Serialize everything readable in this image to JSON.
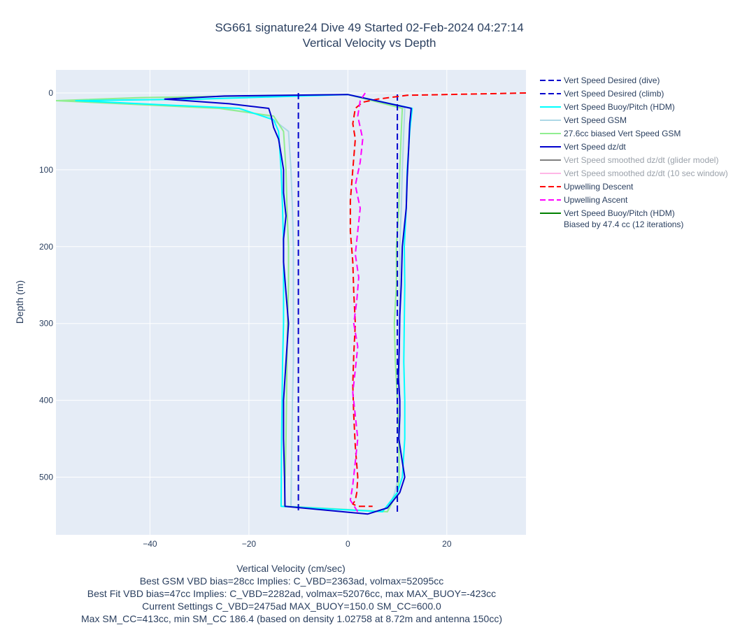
{
  "chart_data": {
    "type": "line",
    "title": "SG661 signature24 Dive 49 Started 02-Feb-2024 04:27:14",
    "subtitle": "Vertical Velocity vs Depth",
    "xlabel": "Vertical Velocity (cm/sec)",
    "ylabel": "Depth (m)",
    "xlim": [
      -59,
      36
    ],
    "ylim": [
      575,
      -30
    ],
    "x_ticks": [
      -40,
      -20,
      0,
      20
    ],
    "x_tick_labels": [
      "−40",
      "−20",
      "0",
      "20"
    ],
    "y_ticks": [
      0,
      100,
      200,
      300,
      400,
      500
    ],
    "y_tick_labels": [
      "0",
      "100",
      "200",
      "300",
      "400",
      "500"
    ],
    "grid": true,
    "legend_position": "right",
    "series": [
      {
        "name": "Vert Speed Desired (dive)",
        "color": "#0000cd",
        "dash": "dash",
        "visible": true,
        "x": [
          -10,
          -10
        ],
        "y": [
          0,
          545
        ]
      },
      {
        "name": "Vert Speed Desired (climb)",
        "color": "#0000cd",
        "dash": "dash",
        "visible": true,
        "x": [
          10,
          10
        ],
        "y": [
          545,
          0
        ]
      },
      {
        "name": "Vert Speed Buoy/Pitch (HDM)",
        "color": "#00ffff",
        "dash": "solid",
        "visible": true,
        "x": [
          0,
          -30,
          -55,
          -42,
          -22,
          -15,
          -14,
          -13.5,
          -13.2,
          -13,
          -13,
          -13,
          -13.2,
          -13.3,
          -13.4,
          -13.5,
          7,
          10,
          11,
          11.5,
          11.5,
          11.3,
          11.4,
          11.5,
          11.4,
          11.8,
          12,
          12.5,
          13,
          0
        ],
        "y": [
          2,
          8,
          10,
          14,
          20,
          35,
          50,
          100,
          150,
          200,
          250,
          300,
          350,
          400,
          450,
          538,
          545,
          520,
          500,
          450,
          400,
          350,
          300,
          250,
          200,
          150,
          100,
          50,
          20,
          2
        ]
      },
      {
        "name": "Vert Speed GSM",
        "color": "#add8e6",
        "dash": "solid",
        "visible": true,
        "x": [
          0,
          -40,
          -57,
          -45,
          -25,
          -16,
          -12,
          -11.5,
          -11.2,
          -11,
          -11,
          -11,
          -11,
          -11.2,
          -11.3,
          -11.5,
          8,
          9.5,
          10.2,
          10.5,
          10.5,
          10.4,
          10.4,
          10.5,
          10.5,
          10.8,
          11,
          11.3,
          11.5,
          0
        ],
        "y": [
          2,
          6,
          10,
          14,
          20,
          30,
          50,
          100,
          150,
          200,
          250,
          300,
          350,
          400,
          450,
          538,
          545,
          520,
          500,
          450,
          400,
          350,
          300,
          250,
          200,
          150,
          100,
          50,
          20,
          2
        ]
      },
      {
        "name": "27.6cc biased Vert Speed GSM",
        "color": "#90ee90",
        "dash": "solid",
        "visible": true,
        "x": [
          0,
          -42,
          -59,
          -46,
          -26,
          -15,
          -13,
          -12.5,
          -12.3,
          -12,
          -12,
          -12.2,
          -12.3,
          -12.4,
          -12.5,
          -12.8,
          8,
          10,
          10.4,
          10.3,
          10,
          9.6,
          9.4,
          9.8,
          9.8,
          10.3,
          10.5,
          10.8,
          11,
          0
        ],
        "y": [
          2,
          6,
          10,
          14,
          20,
          30,
          50,
          100,
          150,
          200,
          250,
          300,
          350,
          400,
          450,
          538,
          545,
          520,
          500,
          450,
          400,
          350,
          300,
          250,
          200,
          150,
          100,
          50,
          20,
          2
        ]
      },
      {
        "name": "Vert Speed dz/dt",
        "color": "#0000cd",
        "dash": "solid",
        "visible": true,
        "x": [
          0,
          -25,
          -37,
          -24,
          -16,
          -15.5,
          -15,
          -14,
          -13.5,
          -13,
          -13,
          -12.5,
          -13,
          -13,
          -12.5,
          -12,
          -12.5,
          -13,
          -13,
          -12.8,
          -12.7,
          4,
          8,
          10.5,
          11.5,
          11,
          10.3,
          10.5,
          10.5,
          10.2,
          10.4,
          10.5,
          10.8,
          11,
          11.8,
          12,
          12.3,
          12.5,
          12.8,
          0
        ],
        "y": [
          2,
          4,
          8,
          14,
          20,
          30,
          45,
          60,
          80,
          100,
          130,
          160,
          190,
          220,
          260,
          300,
          350,
          400,
          450,
          500,
          538,
          548,
          540,
          520,
          500,
          480,
          450,
          420,
          400,
          370,
          330,
          290,
          250,
          200,
          150,
          110,
          70,
          40,
          20,
          2
        ]
      },
      {
        "name": "Vert Speed smoothed dz/dt (glider model)",
        "color": "#808080",
        "dash": "solid",
        "visible": false,
        "x": [],
        "y": []
      },
      {
        "name": "Vert Speed smoothed dz/dt (10 sec window)",
        "color": "#ffb6e6",
        "dash": "solid",
        "visible": false,
        "x": [],
        "y": []
      },
      {
        "name": "Upwelling Descent",
        "color": "#ff0000",
        "dash": "dash",
        "visible": true,
        "x": [
          36,
          12,
          6,
          3,
          1.5,
          1,
          1.5,
          1,
          0.5,
          0.5,
          1,
          1.2,
          1.5,
          1.2,
          1,
          1.2,
          1.5,
          2,
          1.8,
          1.5,
          1,
          2,
          5
        ],
        "y": [
          0,
          3,
          8,
          12,
          20,
          40,
          60,
          100,
          140,
          180,
          220,
          260,
          300,
          340,
          380,
          420,
          460,
          500,
          520,
          530,
          535,
          538,
          538
        ]
      },
      {
        "name": "Upwelling Ascent",
        "color": "#ff00ff",
        "dash": "dash",
        "visible": true,
        "x": [
          2,
          0.5,
          1,
          1.5,
          2,
          1.5,
          1,
          1.5,
          2,
          1.2,
          1.8,
          2.2,
          1.5,
          2,
          2.5,
          1.5,
          2.5,
          3,
          2,
          2.5,
          3.5
        ],
        "y": [
          545,
          530,
          510,
          480,
          450,
          420,
          390,
          360,
          330,
          300,
          270,
          240,
          210,
          180,
          150,
          120,
          90,
          60,
          30,
          10,
          0
        ]
      },
      {
        "name": "Vert Speed Buoy/Pitch (HDM) Biased by 47.4 cc (12 iterations)",
        "color": "#008000",
        "dash": "solid",
        "visible": true,
        "x": [
          0,
          -35,
          -42,
          -28,
          -16,
          -14,
          -13.5,
          -13,
          -13,
          -12.8,
          -12.8,
          -13,
          -13,
          -13,
          -13.2,
          -13.3,
          6,
          9,
          10.5,
          11,
          11.3,
          11.2,
          11,
          11.2,
          11.3,
          11.8,
          12,
          12.3,
          12.5,
          0
        ],
        "y": [
          2,
          6,
          10,
          14,
          20,
          35,
          50,
          100,
          150,
          200,
          250,
          300,
          350,
          400,
          450,
          538,
          545,
          520,
          500,
          450,
          400,
          350,
          300,
          250,
          200,
          150,
          100,
          50,
          20,
          2
        ]
      }
    ]
  },
  "legend": {
    "items": [
      {
        "label": "Vert Speed Desired (dive)",
        "color": "#0000cd",
        "dash": "dash",
        "muted": false
      },
      {
        "label": "Vert Speed Desired (climb)",
        "color": "#0000cd",
        "dash": "dash",
        "muted": false
      },
      {
        "label": "Vert Speed Buoy/Pitch (HDM)",
        "color": "#00ffff",
        "dash": "solid",
        "muted": false
      },
      {
        "label": "Vert Speed GSM",
        "color": "#add8e6",
        "dash": "solid",
        "muted": false
      },
      {
        "label": "27.6cc biased Vert Speed GSM",
        "color": "#90ee90",
        "dash": "solid",
        "muted": false
      },
      {
        "label": "Vert Speed dz/dt",
        "color": "#0000cd",
        "dash": "solid",
        "muted": false
      },
      {
        "label": "Vert Speed smoothed dz/dt (glider model)",
        "color": "#808080",
        "dash": "solid",
        "muted": true
      },
      {
        "label": "Vert Speed smoothed dz/dt (10 sec window)",
        "color": "#ffb6e6",
        "dash": "solid",
        "muted": true
      },
      {
        "label": "Upwelling Descent",
        "color": "#ff0000",
        "dash": "dash",
        "muted": false
      },
      {
        "label": "Upwelling Ascent",
        "color": "#ff00ff",
        "dash": "dash",
        "muted": false
      },
      {
        "label": "Vert Speed Buoy/Pitch (HDM)",
        "label2": "Biased by 47.4 cc (12 iterations)",
        "color": "#008000",
        "dash": "solid",
        "muted": false
      }
    ]
  },
  "footer": {
    "line1": "Best GSM VBD bias=28cc Implies: C_VBD=2363ad, volmax=52095cc",
    "line2": "Best Fit VBD bias=47cc Implies: C_VBD=2282ad, volmax=52076cc, max MAX_BUOY=-423cc",
    "line3": "Current Settings C_VBD=2475ad MAX_BUOY=150.0 SM_CC=600.0",
    "line4": "Max SM_CC=413cc, min SM_CC 186.4 (based on density 1.02758 at 8.72m and antenna 150cc)"
  },
  "colors": {
    "plot_bg": "#e5ecf6",
    "grid": "#ffffff",
    "text": "#2a3f5f"
  }
}
